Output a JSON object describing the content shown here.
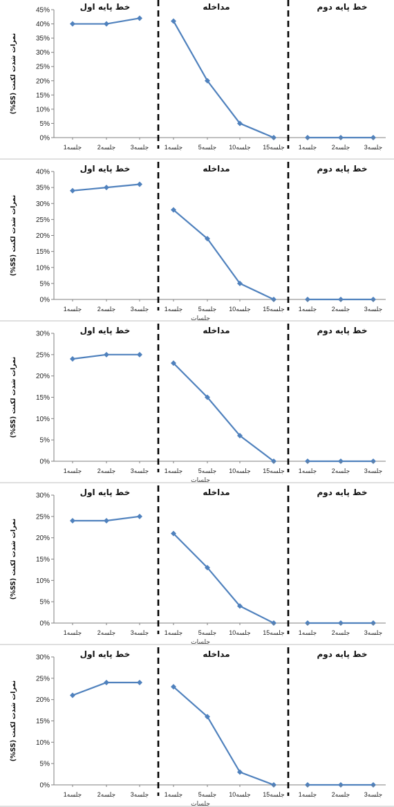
{
  "chart_data": [
    {
      "type": "line",
      "ylim": [
        0,
        0.45
      ],
      "yticks": [
        "0%",
        "5%",
        "10%",
        "15%",
        "20%",
        "25%",
        "30%",
        "35%",
        "40%",
        "45%"
      ],
      "ylabel": "نمرات شدت لکنت (SS%)",
      "xlabel": "",
      "phases": [
        {
          "label": "خط پایه اول",
          "x_labels": [
            "جلسه1",
            "جلسه2",
            "جلسه3"
          ],
          "values": [
            0.4,
            0.4,
            0.42
          ]
        },
        {
          "label": "مداخله",
          "x_labels": [
            "جلسه1",
            "جلسه5",
            "جلسه10",
            "جلسه15"
          ],
          "values": [
            0.41,
            0.2,
            0.05,
            0.0
          ]
        },
        {
          "label": "خط پایه دوم",
          "x_labels": [
            "جلسه1",
            "جلسه2",
            "جلسه3"
          ],
          "values": [
            0.0,
            0.0,
            0.0
          ]
        }
      ]
    },
    {
      "type": "line",
      "ylim": [
        0,
        0.4
      ],
      "yticks": [
        "0%",
        "5%",
        "10%",
        "15%",
        "20%",
        "25%",
        "30%",
        "35%",
        "40%"
      ],
      "ylabel": "نمرات شدت لکنت (SS%)",
      "xlabel": "جلسات",
      "phases": [
        {
          "label": "خط پایه اول",
          "x_labels": [
            "جلسه1",
            "جلسه2",
            "جلسه3"
          ],
          "values": [
            0.34,
            0.35,
            0.36
          ]
        },
        {
          "label": "مداخله",
          "x_labels": [
            "جلسه1",
            "جلسه5",
            "جلسه10",
            "جلسه15"
          ],
          "values": [
            0.28,
            0.19,
            0.05,
            0.0
          ]
        },
        {
          "label": "خط پایه دوم",
          "x_labels": [
            "جلسه1",
            "جلسه2",
            "جلسه3"
          ],
          "values": [
            0.0,
            0.0,
            0.0
          ]
        }
      ]
    },
    {
      "type": "line",
      "ylim": [
        0,
        0.3
      ],
      "yticks": [
        "0%",
        "5%",
        "10%",
        "15%",
        "20%",
        "25%",
        "30%"
      ],
      "ylabel": "نمرات شدت لکنت (SS%)",
      "xlabel": "جلسات",
      "phases": [
        {
          "label": "خط پایه اول",
          "x_labels": [
            "جلسه1",
            "جلسه2",
            "جلسه3"
          ],
          "values": [
            0.24,
            0.25,
            0.25
          ]
        },
        {
          "label": "مداخله",
          "x_labels": [
            "جلسه1",
            "جلسه5",
            "جلسه10",
            "جلسه15"
          ],
          "values": [
            0.23,
            0.15,
            0.06,
            0.0
          ]
        },
        {
          "label": "خط پایه دوم",
          "x_labels": [
            "جلسه1",
            "جلسه2",
            "جلسه3"
          ],
          "values": [
            0.0,
            0.0,
            0.0
          ]
        }
      ]
    },
    {
      "type": "line",
      "ylim": [
        0,
        0.3
      ],
      "yticks": [
        "0%",
        "5%",
        "10%",
        "15%",
        "20%",
        "25%",
        "30%"
      ],
      "ylabel": "نمرات شدت لکنت (SS%)",
      "xlabel": "جلسات",
      "phases": [
        {
          "label": "خط پایه اول",
          "x_labels": [
            "جلسه1",
            "جلسه2",
            "جلسه3"
          ],
          "values": [
            0.24,
            0.24,
            0.25
          ]
        },
        {
          "label": "مداخله",
          "x_labels": [
            "جلسه1",
            "جلسه5",
            "جلسه10",
            "جلسه15"
          ],
          "values": [
            0.21,
            0.13,
            0.04,
            0.0
          ]
        },
        {
          "label": "خط پایه دوم",
          "x_labels": [
            "جلسه1",
            "جلسه2",
            "جلسه3"
          ],
          "values": [
            0.0,
            0.0,
            0.0
          ]
        }
      ]
    },
    {
      "type": "line",
      "ylim": [
        0,
        0.3
      ],
      "yticks": [
        "0%",
        "5%",
        "10%",
        "15%",
        "20%",
        "25%",
        "30%"
      ],
      "ylabel": "نمرات شدت لکنت (SS%)",
      "xlabel": "جلسات",
      "phases": [
        {
          "label": "خط پایه اول",
          "x_labels": [
            "جلسه1",
            "جلسه2",
            "جلسه3"
          ],
          "values": [
            0.21,
            0.24,
            0.24
          ]
        },
        {
          "label": "مداخله",
          "x_labels": [
            "جلسه1",
            "جلسه5",
            "جلسه10",
            "جلسه15"
          ],
          "values": [
            0.23,
            0.16,
            0.03,
            0.0
          ]
        },
        {
          "label": "خط پایه دوم",
          "x_labels": [
            "جلسه1",
            "جلسه2",
            "جلسه3"
          ],
          "values": [
            0.0,
            0.0,
            0.0
          ]
        }
      ]
    }
  ],
  "colors": {
    "series": "#4f81bd",
    "axis": "#7f7f7f",
    "divider": "#000000"
  }
}
